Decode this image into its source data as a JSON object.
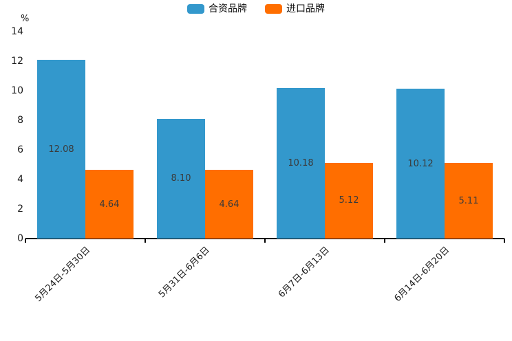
{
  "chart_data": {
    "type": "bar",
    "title": "",
    "ylabel": "%",
    "ylim": [
      0,
      14
    ],
    "ytick_step": 2,
    "grid": false,
    "legend_position": "top-center",
    "categories": [
      "5月24日-5月30日",
      "5月31日-6月6日",
      "6月7日-6月13日",
      "6月14日-6月20日"
    ],
    "series": [
      {
        "name": "合资品牌",
        "color": "#3398CC",
        "values": [
          12.08,
          8.1,
          10.18,
          10.12
        ]
      },
      {
        "name": "进口品牌",
        "color": "#FF6E00",
        "values": [
          4.64,
          4.64,
          5.12,
          5.11
        ]
      }
    ],
    "value_label_decimals": 2,
    "colors": {
      "axis": "#000000",
      "value_label": "#3a3a3a",
      "tick_label": "#1a1a1a",
      "background": "#ffffff"
    }
  }
}
